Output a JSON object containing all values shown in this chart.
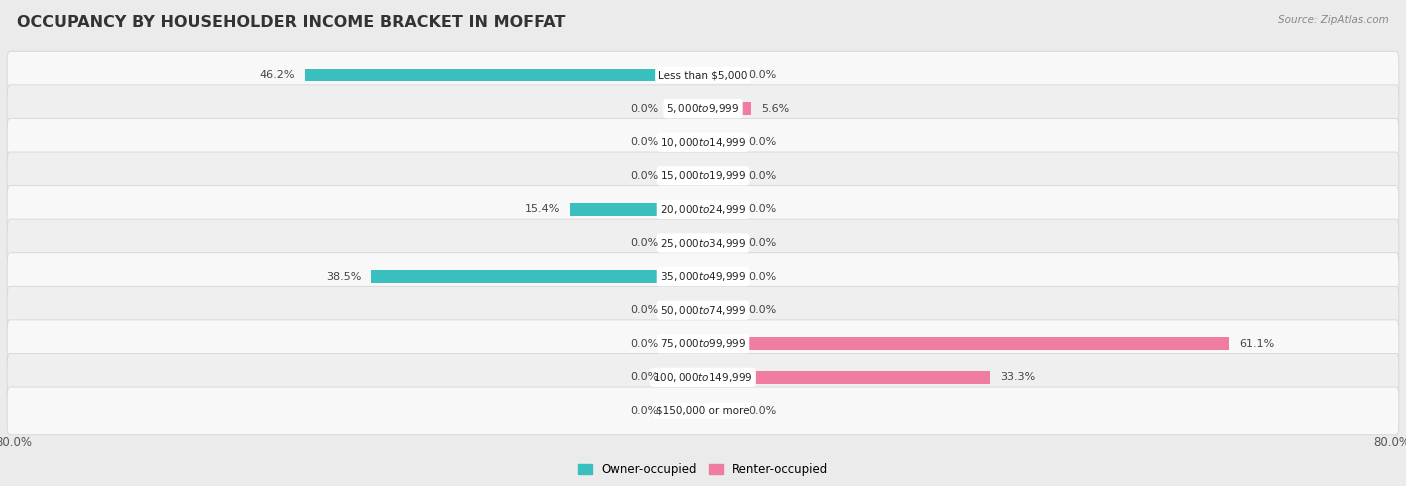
{
  "title": "OCCUPANCY BY HOUSEHOLDER INCOME BRACKET IN MOFFAT",
  "source": "Source: ZipAtlas.com",
  "categories": [
    "Less than $5,000",
    "$5,000 to $9,999",
    "$10,000 to $14,999",
    "$15,000 to $19,999",
    "$20,000 to $24,999",
    "$25,000 to $34,999",
    "$35,000 to $49,999",
    "$50,000 to $74,999",
    "$75,000 to $99,999",
    "$100,000 to $149,999",
    "$150,000 or more"
  ],
  "owner_values": [
    46.2,
    0.0,
    0.0,
    0.0,
    15.4,
    0.0,
    38.5,
    0.0,
    0.0,
    0.0,
    0.0
  ],
  "renter_values": [
    0.0,
    5.6,
    0.0,
    0.0,
    0.0,
    0.0,
    0.0,
    0.0,
    61.1,
    33.3,
    0.0
  ],
  "owner_color": "#3abfbf",
  "renter_color": "#f07ca0",
  "owner_color_light": "#a0d8d8",
  "renter_color_light": "#f5b8cc",
  "axis_max": 80.0,
  "stub_size": 4.0,
  "bg_color": "#ebebeb",
  "row_bg_even": "#f8f8f8",
  "row_bg_odd": "#efefef",
  "row_border": "#d5d5d5",
  "title_fontsize": 11.5,
  "label_fontsize": 7.5,
  "value_fontsize": 8.0,
  "tick_fontsize": 8.5,
  "legend_fontsize": 8.5
}
